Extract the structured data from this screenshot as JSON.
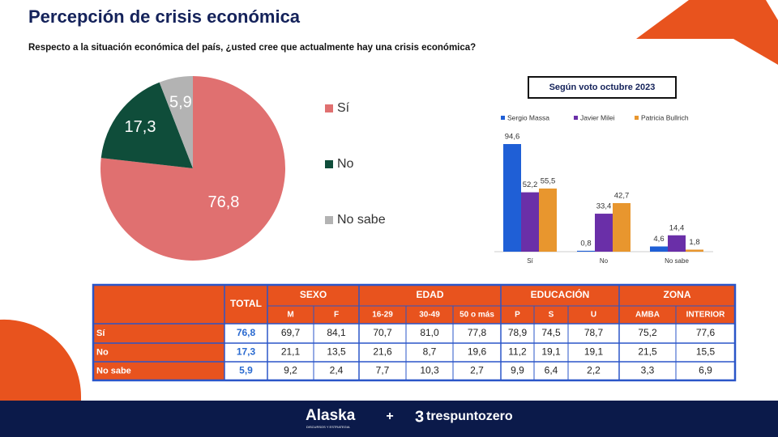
{
  "title": "Percepción de crisis económica",
  "subtitle": "Respecto a la situación económica del país, ¿usted cree que actualmente hay una crisis económica?",
  "chart_data": [
    {
      "type": "pie",
      "categories": [
        "Sí",
        "No",
        "No sabe"
      ],
      "values": [
        76.8,
        17.3,
        5.9
      ],
      "value_labels": [
        "76,8",
        "17,3",
        "5,9"
      ],
      "colors": [
        "#e07070",
        "#0f4d3a",
        "#b3b3b3"
      ]
    },
    {
      "type": "bar",
      "title": "Según voto octubre 2023",
      "categories": [
        "Sí",
        "No",
        "No sabe"
      ],
      "series": [
        {
          "name": "Sergio Massa",
          "color": "#1f5fd6",
          "values": [
            94.6,
            0.8,
            4.6
          ],
          "value_labels": [
            "94,6",
            "0,8",
            "4,6"
          ]
        },
        {
          "name": "Javier Milei",
          "color": "#6a2fa8",
          "values": [
            52.2,
            33.4,
            14.4
          ],
          "value_labels": [
            "52,2",
            "33,4",
            "14,4"
          ]
        },
        {
          "name": "Patricia Bullrich",
          "color": "#e8962e",
          "values": [
            55.5,
            42.7,
            1.8
          ],
          "value_labels": [
            "55,5",
            "42,7",
            "1,8"
          ]
        }
      ]
    }
  ],
  "table": {
    "total_header": "TOTAL",
    "groups": [
      {
        "label": "SEXO",
        "columns": [
          "M",
          "F"
        ]
      },
      {
        "label": "EDAD",
        "columns": [
          "16-29",
          "30-49",
          "50 o más"
        ]
      },
      {
        "label": "EDUCACIÓN",
        "columns": [
          "P",
          "S",
          "U"
        ]
      },
      {
        "label": "ZONA",
        "columns": [
          "AMBA",
          "INTERIOR"
        ]
      }
    ],
    "rows": [
      {
        "label": "Sí",
        "total": "76,8",
        "values": [
          "69,7",
          "84,1",
          "70,7",
          "81,0",
          "77,8",
          "78,9",
          "74,5",
          "78,7",
          "75,2",
          "77,6"
        ]
      },
      {
        "label": "No",
        "total": "17,3",
        "values": [
          "21,1",
          "13,5",
          "21,6",
          "8,7",
          "19,6",
          "11,2",
          "19,1",
          "19,1",
          "21,5",
          "15,5"
        ]
      },
      {
        "label": "No sabe",
        "total": "5,9",
        "values": [
          "9,2",
          "2,4",
          "7,7",
          "10,3",
          "2,7",
          "9,9",
          "6,4",
          "2,2",
          "3,3",
          "6,9"
        ]
      }
    ]
  },
  "footer": {
    "brand_left": "Alaska",
    "brand_left_tagline": "DISCURSOS Y ESTRATEGIA",
    "separator": "+",
    "brand_right": "trespuntozero"
  }
}
